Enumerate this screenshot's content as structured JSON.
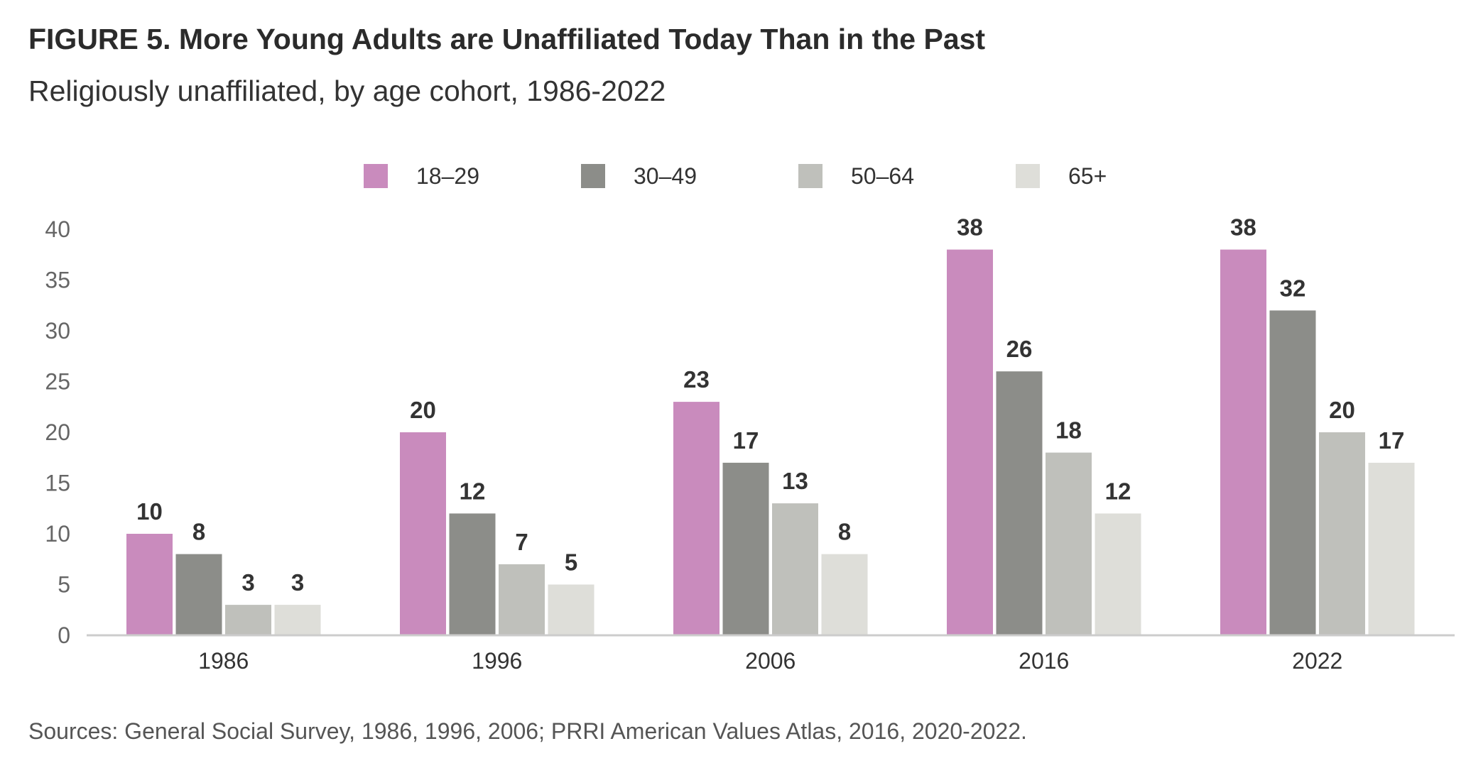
{
  "title": "FIGURE 5. More Young Adults are Unaffiliated Today Than in the Past",
  "subtitle": "Religiously unaffiliated, by age cohort, 1986-2022",
  "source": "Sources: General Social Survey, 1986, 1996, 2006; PRRI American Values Atlas, 2016, 2020-2022.",
  "chart_data": {
    "type": "bar",
    "categories": [
      "1986",
      "1996",
      "2006",
      "2016",
      "2022"
    ],
    "series": [
      {
        "name": "18–29",
        "color": "#c98bbd",
        "values": [
          10,
          20,
          23,
          38,
          38
        ]
      },
      {
        "name": "30–49",
        "color": "#8c8d89",
        "values": [
          8,
          12,
          17,
          26,
          32
        ]
      },
      {
        "name": "50–64",
        "color": "#bfc0bb",
        "values": [
          3,
          7,
          13,
          18,
          20
        ]
      },
      {
        "name": "65+",
        "color": "#deded9",
        "values": [
          3,
          5,
          8,
          12,
          17
        ]
      }
    ],
    "ylim": [
      0,
      40
    ],
    "yticks": [
      0,
      5,
      10,
      15,
      20,
      25,
      30,
      35,
      40
    ],
    "grid": false,
    "legend": "top-center",
    "data_labels": true
  }
}
